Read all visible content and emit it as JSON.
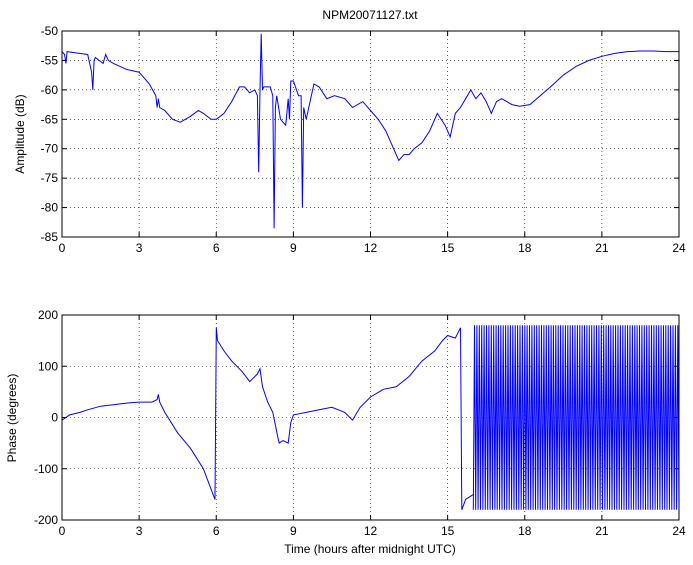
{
  "chart_data": [
    {
      "type": "line",
      "title": "NPM20071127.txt",
      "xlabel": "",
      "ylabel": "Amplitude (dB)",
      "xlim": [
        0,
        24
      ],
      "ylim": [
        -85,
        -50
      ],
      "xticks": [
        "0",
        "3",
        "6",
        "9",
        "12",
        "15",
        "18",
        "21",
        "24"
      ],
      "yticks": [
        "-50",
        "-55",
        "-60",
        "-65",
        "-70",
        "-75",
        "-80",
        "-85"
      ],
      "grid": true,
      "color": "#0000ff",
      "series": [
        {
          "x": [
            0,
            0.1,
            0.15,
            0.2,
            0.5,
            1.0,
            1.15,
            1.2,
            1.25,
            1.3,
            1.6,
            1.7,
            1.8,
            2.0,
            2.5,
            3.0,
            3.4,
            3.65,
            3.7,
            3.75,
            3.8,
            4.0,
            4.3,
            4.6,
            5.0,
            5.3,
            5.5,
            5.8,
            6.0,
            6.3,
            6.6,
            6.9,
            7.1,
            7.3,
            7.5,
            7.6,
            7.65,
            7.7,
            7.75,
            7.8,
            7.85,
            7.9,
            8.1,
            8.2,
            8.25,
            8.3,
            8.35,
            8.5,
            8.7,
            8.8,
            8.85,
            8.9,
            9.0,
            9.2,
            9.3,
            9.35,
            9.4,
            9.5,
            9.8,
            10.0,
            10.3,
            10.6,
            11.0,
            11.3,
            11.7,
            12.0,
            12.3,
            12.6,
            12.9,
            13.1,
            13.3,
            13.5,
            13.7,
            14.0,
            14.3,
            14.6,
            14.9,
            15.1,
            15.3,
            15.5,
            15.7,
            15.9,
            16.1,
            16.3,
            16.5,
            16.7,
            16.9,
            17.1,
            17.3,
            17.5,
            17.8,
            18.2,
            18.6,
            19.0,
            19.5,
            20.0,
            20.5,
            21.0,
            21.5,
            22.0,
            22.5,
            23.0,
            23.5,
            24.0
          ],
          "y": [
            -53.5,
            -54,
            -55.5,
            -53.5,
            -53.7,
            -54,
            -57,
            -60,
            -55,
            -54.5,
            -55.5,
            -54,
            -55,
            -55.5,
            -56.5,
            -57,
            -59,
            -61,
            -63,
            -61.5,
            -63,
            -63.5,
            -65,
            -65.5,
            -64.5,
            -63.5,
            -64,
            -65,
            -65,
            -64,
            -62,
            -59.5,
            -59.5,
            -60.5,
            -60,
            -61,
            -74,
            -60,
            -50.5,
            -60,
            -59.5,
            -59.5,
            -59.5,
            -61,
            -83.5,
            -63,
            -61,
            -65,
            -66,
            -61.5,
            -65,
            -58.5,
            -58.5,
            -61,
            -61,
            -80,
            -63,
            -65,
            -59,
            -59.5,
            -61.5,
            -61,
            -61.5,
            -63,
            -62,
            -63.5,
            -65,
            -67,
            -70,
            -72,
            -71,
            -71,
            -70,
            -69,
            -67,
            -64,
            -66,
            -68,
            -64,
            -63,
            -61.5,
            -60,
            -61.5,
            -60.5,
            -62,
            -64,
            -62,
            -61.5,
            -62,
            -62.5,
            -62.8,
            -62.5,
            -61,
            -59.5,
            -57.5,
            -56,
            -55,
            -54.3,
            -53.8,
            -53.5,
            -53.4,
            -53.4,
            -53.5,
            -53.5
          ]
        }
      ]
    },
    {
      "type": "line",
      "title": "",
      "xlabel": "Time (hours after midnight UTC)",
      "ylabel": "Phase (degrees)",
      "xlim": [
        0,
        24
      ],
      "ylim": [
        -200,
        200
      ],
      "xticks": [
        "0",
        "3",
        "6",
        "9",
        "12",
        "15",
        "18",
        "21",
        "24"
      ],
      "yticks": [
        "200",
        "100",
        "0",
        "-100",
        "-200"
      ],
      "grid": true,
      "color": "#0000ff",
      "series": [
        {
          "x": [
            0,
            0.3,
            0.7,
            1.0,
            1.5,
            2.0,
            2.5,
            3.0,
            3.5,
            3.7,
            3.75,
            3.8,
            4.0,
            4.5,
            5.0,
            5.5,
            5.8,
            5.95,
            6.0,
            6.05,
            6.3,
            6.6,
            7.0,
            7.3,
            7.6,
            7.7,
            7.8,
            8.0,
            8.2,
            8.4,
            8.45,
            8.6,
            8.8,
            8.9,
            9.0,
            9.5,
            10.0,
            10.5,
            11.0,
            11.3,
            11.6,
            12.0,
            12.5,
            13.0,
            13.5,
            14.0,
            14.5,
            14.8,
            15.0,
            15.3,
            15.5,
            15.55,
            15.7,
            16.0
          ],
          "y": [
            -5,
            5,
            10,
            15,
            22,
            25,
            28,
            30,
            30,
            35,
            45,
            30,
            10,
            -30,
            -60,
            -100,
            -140,
            -160,
            175,
            150,
            130,
            110,
            90,
            70,
            85,
            95,
            60,
            30,
            10,
            -40,
            -50,
            -45,
            -50,
            -10,
            5,
            10,
            15,
            20,
            10,
            -5,
            20,
            40,
            55,
            60,
            80,
            110,
            130,
            150,
            160,
            155,
            175,
            -180,
            -160,
            -150
          ]
        }
      ],
      "notes_oscillation": {
        "x_range": [
          16.0,
          24.0
        ],
        "y_range": [
          -180,
          180
        ]
      }
    }
  ]
}
